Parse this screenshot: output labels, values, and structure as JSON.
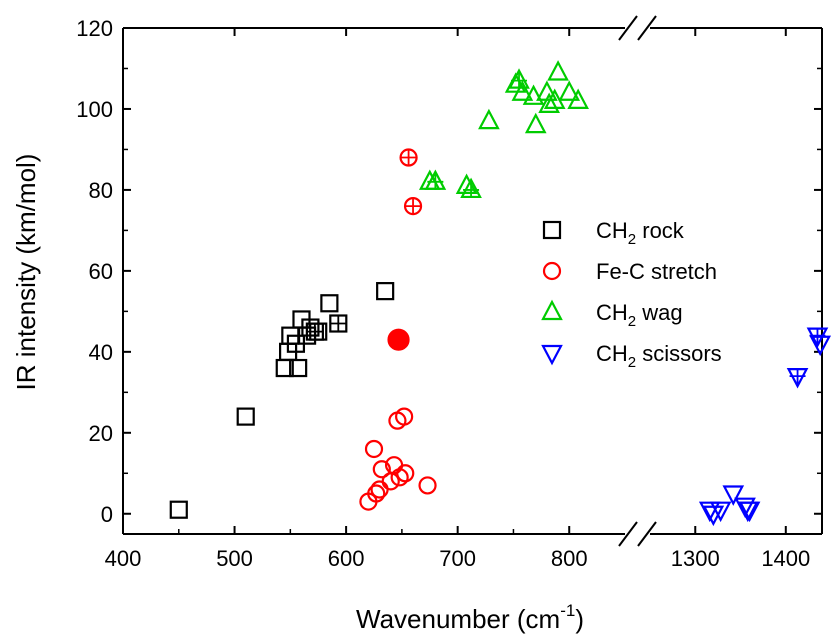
{
  "chart_data": {
    "type": "scatter",
    "xlabel": "Wavenumber (cm",
    "xlabel_sup": "-1",
    "xlabel_close": ")",
    "ylabel": "IR intensity (km/mol)",
    "x_break": true,
    "x_segments": [
      {
        "range": [
          400,
          850
        ],
        "ticks": [
          400,
          500,
          600,
          700,
          800
        ]
      },
      {
        "range": [
          1250,
          1440
        ],
        "ticks": [
          1300,
          1400
        ]
      }
    ],
    "y_range": [
      -5,
      120
    ],
    "y_ticks": [
      0,
      20,
      40,
      60,
      80,
      100,
      120
    ],
    "y_tick_labels": [
      "0",
      "20",
      "40",
      "60",
      "80",
      "100",
      "120"
    ],
    "x_tick_labels": [
      "400",
      "500",
      "600",
      "700",
      "800",
      "1300",
      "1400"
    ],
    "grid": false,
    "legend_position": "center-right",
    "legend": [
      {
        "label": "CH",
        "sub": "2",
        "rest": " rock",
        "marker": "square",
        "color": "#000000"
      },
      {
        "label": "Fe-C stretch",
        "sub": "",
        "rest": "",
        "marker": "circle",
        "color": "#ff0000"
      },
      {
        "label": "CH",
        "sub": "2",
        "rest": " wag",
        "marker": "triangle-up",
        "color": "#00cc00"
      },
      {
        "label": "CH",
        "sub": "2",
        "rest": " scissors",
        "marker": "triangle-down",
        "color": "#0000ff"
      }
    ],
    "series": [
      {
        "name": "CH2 rock",
        "marker": "square",
        "color": "#000000",
        "points": [
          [
            450,
            1
          ],
          [
            510,
            24
          ],
          [
            545,
            36
          ],
          [
            548,
            40
          ],
          [
            550,
            44
          ],
          [
            555,
            42
          ],
          [
            557,
            36
          ],
          [
            560,
            48
          ],
          [
            565,
            44
          ],
          [
            568,
            46
          ],
          [
            572,
            45
          ],
          [
            575,
            45
          ],
          [
            585,
            52
          ],
          [
            593,
            47
          ],
          [
            635,
            55
          ]
        ],
        "crossed": [
          [
            572,
            45
          ],
          [
            593,
            47
          ]
        ]
      },
      {
        "name": "Fe-C stretch",
        "marker": "circle",
        "color": "#ff0000",
        "points": [
          [
            620,
            3
          ],
          [
            625,
            16
          ],
          [
            627,
            5
          ],
          [
            630,
            6
          ],
          [
            632,
            11
          ],
          [
            640,
            8
          ],
          [
            643,
            12
          ],
          [
            646,
            23
          ],
          [
            648,
            9
          ],
          [
            652,
            24
          ],
          [
            653,
            10
          ],
          [
            673,
            7
          ],
          [
            656,
            88
          ],
          [
            660,
            76
          ]
        ],
        "crossed": [
          [
            656,
            88
          ],
          [
            660,
            76
          ]
        ],
        "filled": [
          [
            647,
            43
          ]
        ]
      },
      {
        "name": "CH2 wag",
        "marker": "triangle-up",
        "color": "#00cc00",
        "points": [
          [
            675,
            82
          ],
          [
            680,
            82
          ],
          [
            708,
            81
          ],
          [
            712,
            80
          ],
          [
            728,
            97
          ],
          [
            752,
            106
          ],
          [
            755,
            107
          ],
          [
            758,
            104
          ],
          [
            768,
            103
          ],
          [
            770,
            96
          ],
          [
            780,
            104
          ],
          [
            782,
            101
          ],
          [
            787,
            102
          ],
          [
            790,
            109
          ],
          [
            800,
            104
          ],
          [
            808,
            102
          ]
        ],
        "crossed": [
          [
            680,
            82
          ],
          [
            712,
            80
          ],
          [
            755,
            107
          ]
        ]
      },
      {
        "name": "CH2 scissors",
        "marker": "triangle-down",
        "color": "#0000ff",
        "points": [
          [
            1316,
            1
          ],
          [
            1320,
            0
          ],
          [
            1328,
            1
          ],
          [
            1342,
            5
          ],
          [
            1355,
            2
          ],
          [
            1358,
            1
          ],
          [
            1360,
            1
          ],
          [
            1413,
            34
          ],
          [
            1435,
            44
          ],
          [
            1438,
            42
          ]
        ],
        "crossed": [
          [
            1413,
            34
          ],
          [
            1435,
            44
          ]
        ]
      }
    ]
  }
}
